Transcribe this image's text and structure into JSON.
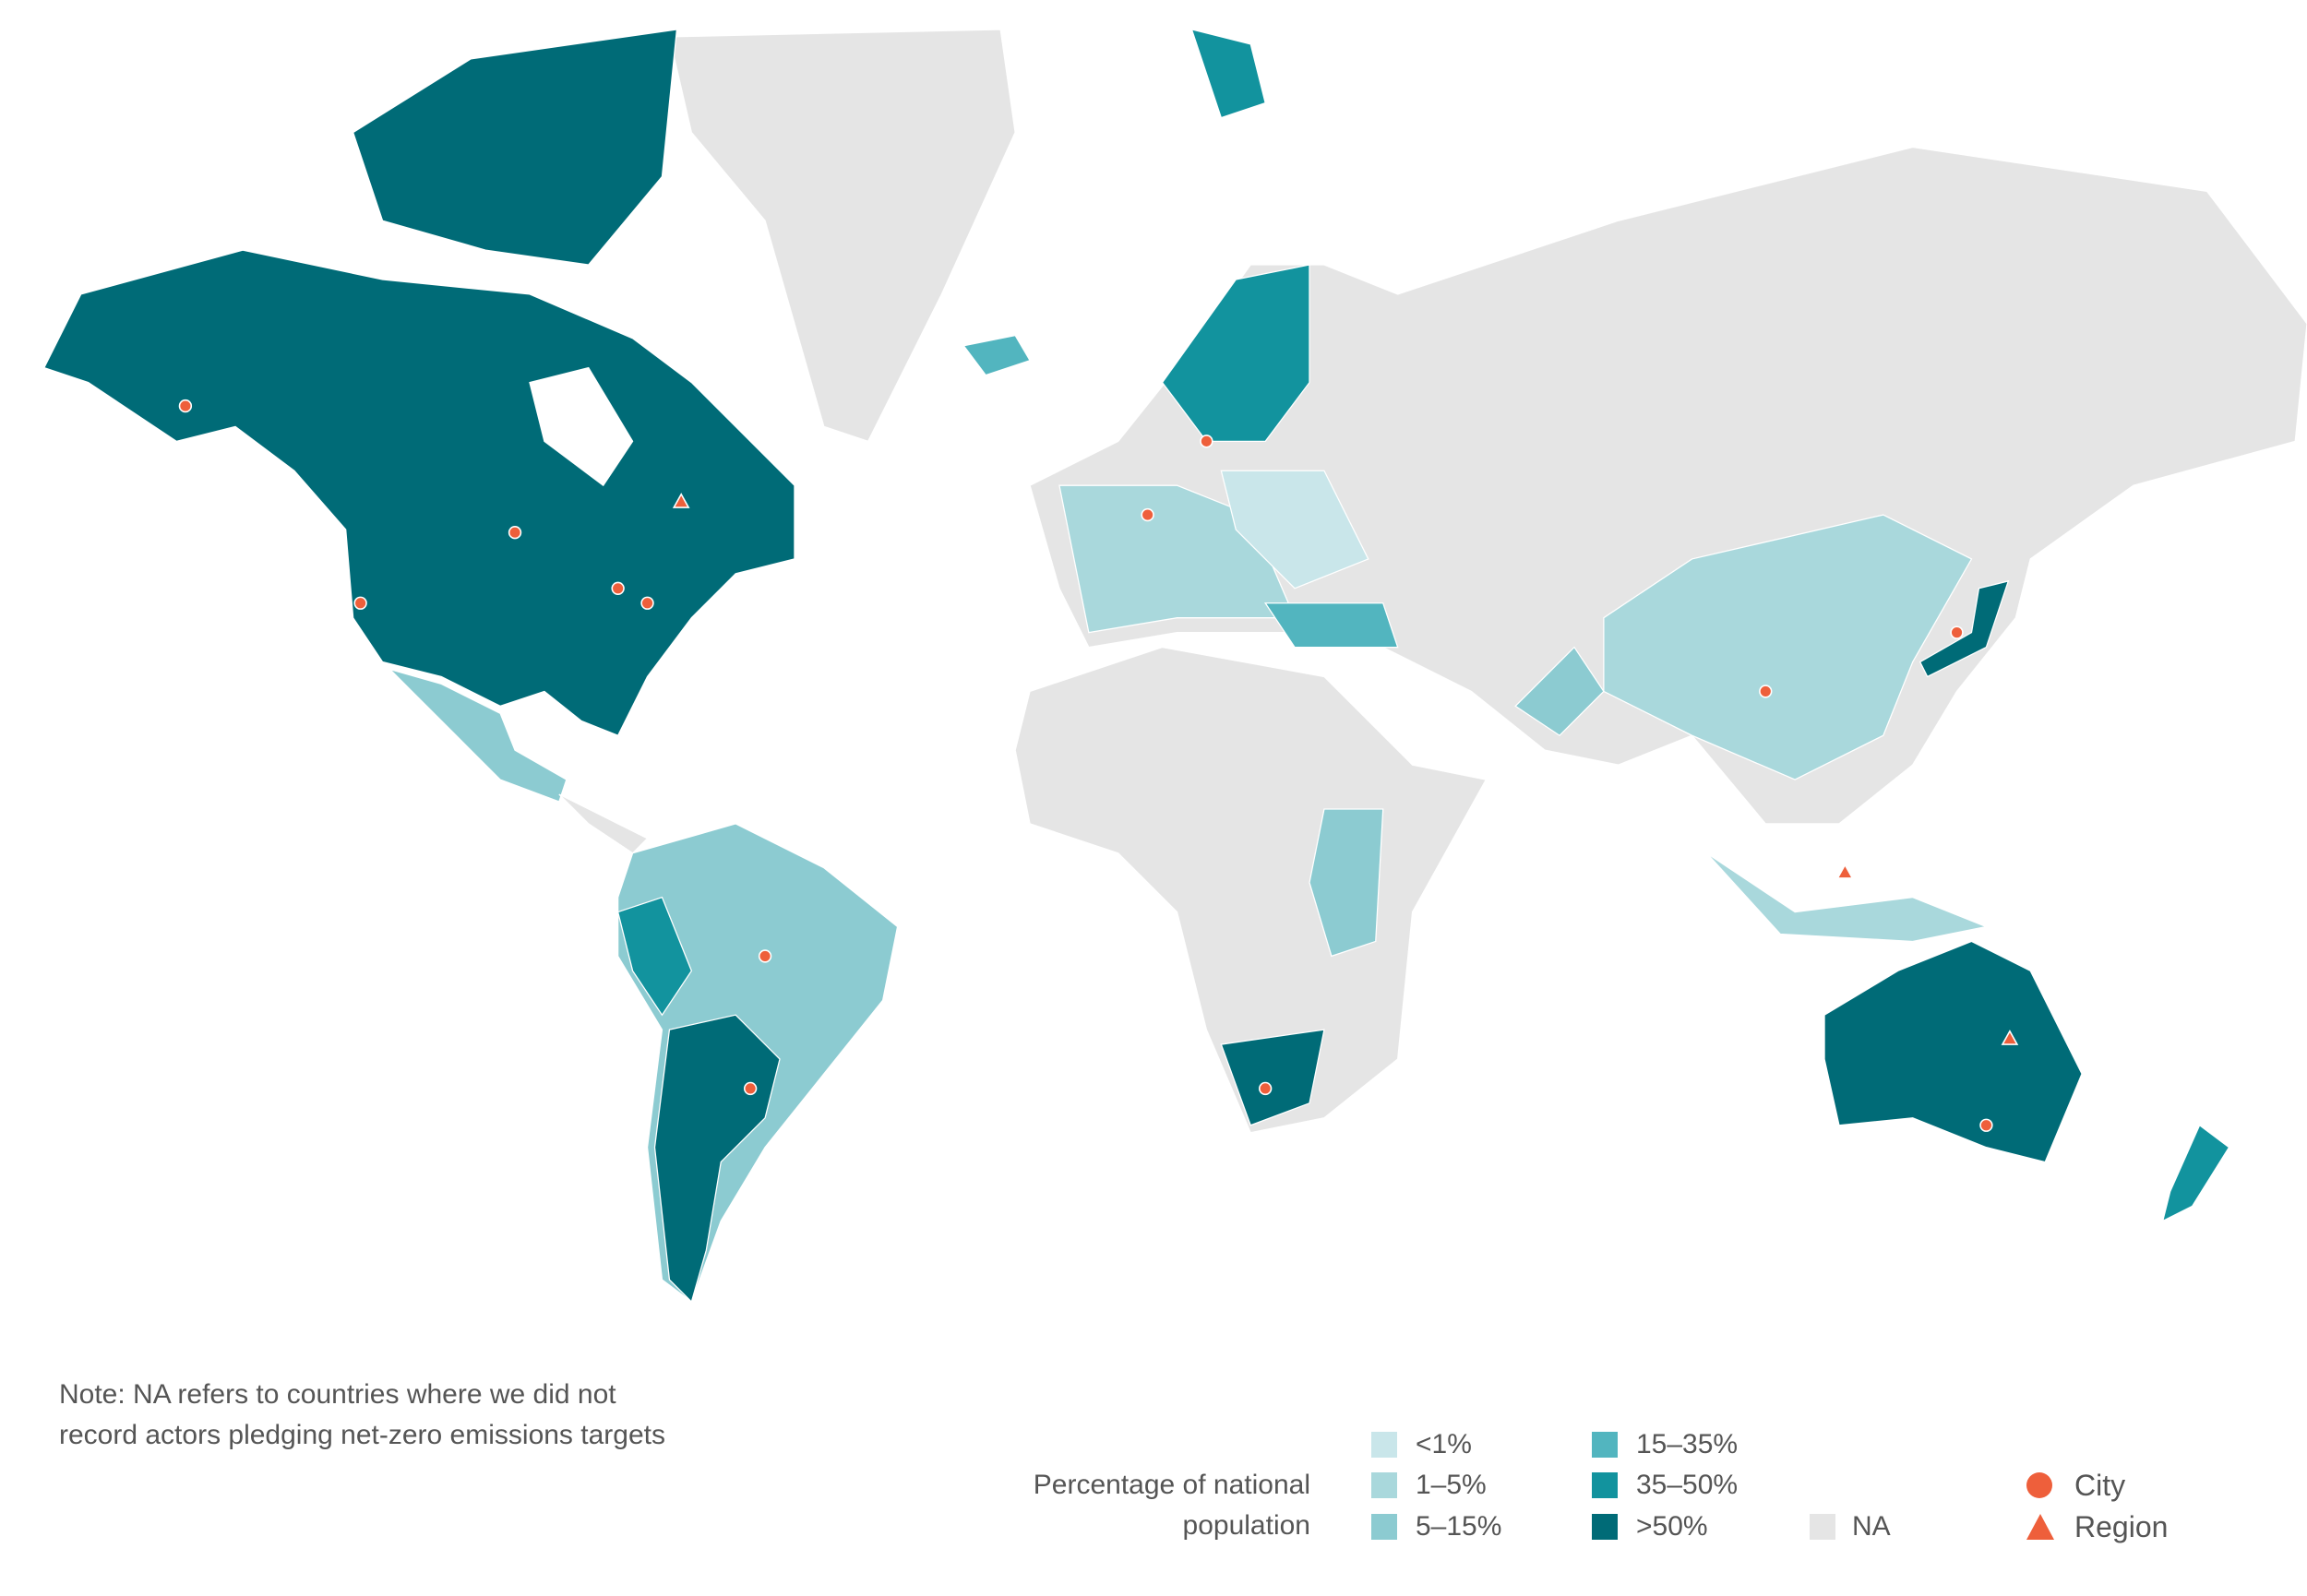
{
  "note": "Note: NA refers to countries where we did not record actors pledging net-zero emissions targets",
  "legend": {
    "title": "Percentage of national population",
    "classes": [
      {
        "label": "<1%",
        "color": "#c9e6ea"
      },
      {
        "label": "1–5%",
        "color": "#a9d8dc"
      },
      {
        "label": "5–15%",
        "color": "#8ccbd1"
      },
      {
        "label": "15–35%",
        "color": "#52b5bf"
      },
      {
        "label": "35–50%",
        "color": "#12939e"
      },
      {
        "label": ">50%",
        "color": "#006b77"
      }
    ],
    "na": {
      "label": "NA",
      "color": "#e5e5e5"
    },
    "markers": [
      {
        "label": "City",
        "color": "#ee5f3b"
      },
      {
        "label": "Region",
        "color": "#ee5f3b"
      }
    ]
  }
}
